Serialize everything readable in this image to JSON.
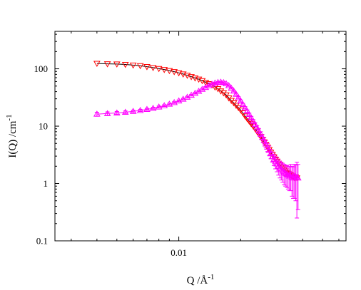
{
  "chart_data": {
    "type": "scatter",
    "title": "",
    "xlabel": {
      "base": "Q /Å",
      "sup": "-1"
    },
    "ylabel": {
      "base": "I(Q) /cm",
      "sup": "-1"
    },
    "x_scale": "log",
    "y_scale": "log",
    "xlim": [
      0.0025,
      0.065
    ],
    "ylim": [
      0.1,
      450
    ],
    "x_tick_labels": [
      {
        "value": 0.01,
        "label": "0.01"
      }
    ],
    "y_tick_labels": [
      {
        "value": 0.1,
        "label": "0.1"
      },
      {
        "value": 1,
        "label": "1"
      },
      {
        "value": 10,
        "label": "10"
      },
      {
        "value": 100,
        "label": "100"
      }
    ],
    "grid": false,
    "legend": "none",
    "series": [
      {
        "marker": "triangle-down",
        "color": "#ff0000",
        "line_color": "#000000",
        "points": [
          {
            "x": 0.004,
            "y": 124
          },
          {
            "x": 0.0045,
            "y": 122
          },
          {
            "x": 0.005,
            "y": 121
          },
          {
            "x": 0.0055,
            "y": 119
          },
          {
            "x": 0.006,
            "y": 116
          },
          {
            "x": 0.0065,
            "y": 113
          },
          {
            "x": 0.007,
            "y": 109
          },
          {
            "x": 0.0075,
            "y": 105
          },
          {
            "x": 0.008,
            "y": 101
          },
          {
            "x": 0.0085,
            "y": 97
          },
          {
            "x": 0.009,
            "y": 93
          },
          {
            "x": 0.0095,
            "y": 89
          },
          {
            "x": 0.01,
            "y": 85
          },
          {
            "x": 0.0105,
            "y": 81
          },
          {
            "x": 0.011,
            "y": 77
          },
          {
            "x": 0.0115,
            "y": 73
          },
          {
            "x": 0.012,
            "y": 69
          },
          {
            "x": 0.0125,
            "y": 66
          },
          {
            "x": 0.013,
            "y": 62
          },
          {
            "x": 0.0135,
            "y": 58
          },
          {
            "x": 0.014,
            "y": 55
          },
          {
            "x": 0.0145,
            "y": 52
          },
          {
            "x": 0.015,
            "y": 48
          },
          {
            "x": 0.0155,
            "y": 45
          },
          {
            "x": 0.016,
            "y": 41
          },
          {
            "x": 0.0165,
            "y": 38
          },
          {
            "x": 0.017,
            "y": 35
          },
          {
            "x": 0.0175,
            "y": 31
          },
          {
            "x": 0.018,
            "y": 28
          },
          {
            "x": 0.0185,
            "y": 25.5
          },
          {
            "x": 0.019,
            "y": 23
          },
          {
            "x": 0.0195,
            "y": 21
          },
          {
            "x": 0.02,
            "y": 19
          },
          {
            "x": 0.0205,
            "y": 17
          },
          {
            "x": 0.021,
            "y": 15
          },
          {
            "x": 0.0215,
            "y": 13.5
          },
          {
            "x": 0.022,
            "y": 12.2
          },
          {
            "x": 0.0225,
            "y": 11
          },
          {
            "x": 0.023,
            "y": 10
          },
          {
            "x": 0.0235,
            "y": 9
          },
          {
            "x": 0.024,
            "y": 8.1
          },
          {
            "x": 0.0245,
            "y": 7.3
          },
          {
            "x": 0.025,
            "y": 6.6
          },
          {
            "x": 0.0255,
            "y": 5.9
          },
          {
            "x": 0.026,
            "y": 5.3
          },
          {
            "x": 0.0265,
            "y": 4.8
          },
          {
            "x": 0.027,
            "y": 4.3
          },
          {
            "x": 0.0275,
            "y": 3.9
          },
          {
            "x": 0.028,
            "y": 3.5
          },
          {
            "x": 0.0285,
            "y": 3.2
          },
          {
            "x": 0.029,
            "y": 2.9
          },
          {
            "x": 0.0295,
            "y": 2.65
          },
          {
            "x": 0.03,
            "y": 2.45
          },
          {
            "x": 0.0305,
            "y": 2.25
          },
          {
            "x": 0.031,
            "y": 2.1
          },
          {
            "x": 0.0315,
            "y": 1.95
          },
          {
            "x": 0.032,
            "y": 1.85
          },
          {
            "x": 0.0325,
            "y": 1.75
          },
          {
            "x": 0.033,
            "y": 1.65
          },
          {
            "x": 0.0335,
            "y": 1.55
          },
          {
            "x": 0.034,
            "y": 1.5
          },
          {
            "x": 0.0345,
            "y": 1.45
          },
          {
            "x": 0.035,
            "y": 1.4
          },
          {
            "x": 0.0355,
            "y": 1.35
          },
          {
            "x": 0.036,
            "y": 1.3
          },
          {
            "x": 0.0365,
            "y": 1.25
          },
          {
            "x": 0.037,
            "y": 1.3
          },
          {
            "x": 0.0375,
            "y": 1.25
          }
        ]
      },
      {
        "marker": "triangle-up",
        "color": "#ff00ff",
        "line_color": "#ff00ff",
        "points": [
          {
            "x": 0.004,
            "y": 16.2,
            "err": 1.3
          },
          {
            "x": 0.0045,
            "y": 16.6,
            "err": 1.1
          },
          {
            "x": 0.005,
            "y": 17.0,
            "err": 1.0
          },
          {
            "x": 0.0055,
            "y": 17.5,
            "err": 0.9
          },
          {
            "x": 0.006,
            "y": 18.1,
            "err": 0.9
          },
          {
            "x": 0.0065,
            "y": 18.8,
            "err": 0.8
          },
          {
            "x": 0.007,
            "y": 19.6,
            "err": 0.8
          },
          {
            "x": 0.0075,
            "y": 20.5,
            "err": 0.8
          },
          {
            "x": 0.008,
            "y": 21.6,
            "err": 0.8
          },
          {
            "x": 0.0085,
            "y": 22.8,
            "err": 0.8
          },
          {
            "x": 0.009,
            "y": 24.2,
            "err": 0.9
          },
          {
            "x": 0.0095,
            "y": 25.8,
            "err": 0.9
          },
          {
            "x": 0.01,
            "y": 27.6,
            "err": 1.0
          },
          {
            "x": 0.0105,
            "y": 29.6,
            "err": 1.0
          },
          {
            "x": 0.011,
            "y": 32.0,
            "err": 1.1
          },
          {
            "x": 0.0115,
            "y": 34.6,
            "err": 1.1
          },
          {
            "x": 0.012,
            "y": 37.5,
            "err": 1.2
          },
          {
            "x": 0.0125,
            "y": 40.6,
            "err": 1.3
          },
          {
            "x": 0.013,
            "y": 44.0,
            "err": 1.4
          },
          {
            "x": 0.0135,
            "y": 47.5,
            "err": 1.5
          },
          {
            "x": 0.014,
            "y": 51.0,
            "err": 1.6
          },
          {
            "x": 0.0145,
            "y": 54.0,
            "err": 1.7
          },
          {
            "x": 0.015,
            "y": 56.5,
            "err": 1.8
          },
          {
            "x": 0.0155,
            "y": 58.0,
            "err": 1.8
          },
          {
            "x": 0.016,
            "y": 58.5,
            "err": 1.8
          },
          {
            "x": 0.0165,
            "y": 57.5,
            "err": 1.8
          },
          {
            "x": 0.017,
            "y": 55.0,
            "err": 1.7
          },
          {
            "x": 0.0175,
            "y": 51.0,
            "err": 1.6
          },
          {
            "x": 0.018,
            "y": 46.0,
            "err": 1.5
          },
          {
            "x": 0.0185,
            "y": 41.0,
            "err": 1.4
          },
          {
            "x": 0.019,
            "y": 36.0,
            "err": 1.3
          },
          {
            "x": 0.0195,
            "y": 31.5,
            "err": 1.2
          },
          {
            "x": 0.02,
            "y": 27.5,
            "err": 1.1
          },
          {
            "x": 0.0205,
            "y": 24.0,
            "err": 1.0
          },
          {
            "x": 0.021,
            "y": 21.0,
            "err": 0.9
          },
          {
            "x": 0.0215,
            "y": 18.3,
            "err": 0.9
          },
          {
            "x": 0.022,
            "y": 16.0,
            "err": 0.8
          },
          {
            "x": 0.0225,
            "y": 14.0,
            "err": 0.8
          },
          {
            "x": 0.023,
            "y": 12.2,
            "err": 0.8
          },
          {
            "x": 0.0235,
            "y": 10.7,
            "err": 0.8
          },
          {
            "x": 0.024,
            "y": 9.4,
            "err": 0.8
          },
          {
            "x": 0.0245,
            "y": 8.3,
            "err": 0.8
          },
          {
            "x": 0.025,
            "y": 7.3,
            "err": 0.7
          },
          {
            "x": 0.0255,
            "y": 6.4,
            "err": 0.7
          },
          {
            "x": 0.026,
            "y": 5.6,
            "err": 0.7
          },
          {
            "x": 0.0265,
            "y": 4.9,
            "err": 0.7
          },
          {
            "x": 0.027,
            "y": 4.3,
            "err": 0.7
          },
          {
            "x": 0.0275,
            "y": 3.8,
            "err": 0.7
          },
          {
            "x": 0.028,
            "y": 3.3,
            "err": 0.6
          },
          {
            "x": 0.0285,
            "y": 2.95,
            "err": 0.6
          },
          {
            "x": 0.029,
            "y": 2.65,
            "err": 0.6
          },
          {
            "x": 0.0295,
            "y": 2.4,
            "err": 0.6
          },
          {
            "x": 0.03,
            "y": 2.2,
            "err": 0.6
          },
          {
            "x": 0.0305,
            "y": 2.0,
            "err": 0.6
          },
          {
            "x": 0.031,
            "y": 1.85,
            "err": 0.6
          },
          {
            "x": 0.0315,
            "y": 1.75,
            "err": 0.6
          },
          {
            "x": 0.032,
            "y": 1.65,
            "err": 0.6
          },
          {
            "x": 0.0325,
            "y": 1.55,
            "err": 0.6
          },
          {
            "x": 0.033,
            "y": 1.5,
            "err": 0.6
          },
          {
            "x": 0.0335,
            "y": 1.45,
            "err": 0.6
          },
          {
            "x": 0.034,
            "y": 1.4,
            "err": 0.6
          },
          {
            "x": 0.0345,
            "y": 1.35,
            "err": 0.6
          },
          {
            "x": 0.035,
            "y": 1.45,
            "err": 0.7
          },
          {
            "x": 0.0355,
            "y": 1.3,
            "err": 0.7
          },
          {
            "x": 0.036,
            "y": 1.25,
            "err": 0.7
          },
          {
            "x": 0.0365,
            "y": 1.35,
            "err": 0.8
          },
          {
            "x": 0.037,
            "y": 1.3,
            "err": 0.8
          },
          {
            "x": 0.0375,
            "y": 1.3,
            "err": 1.05
          },
          {
            "x": 0.038,
            "y": 1.25,
            "err": 0.9
          }
        ]
      }
    ]
  }
}
